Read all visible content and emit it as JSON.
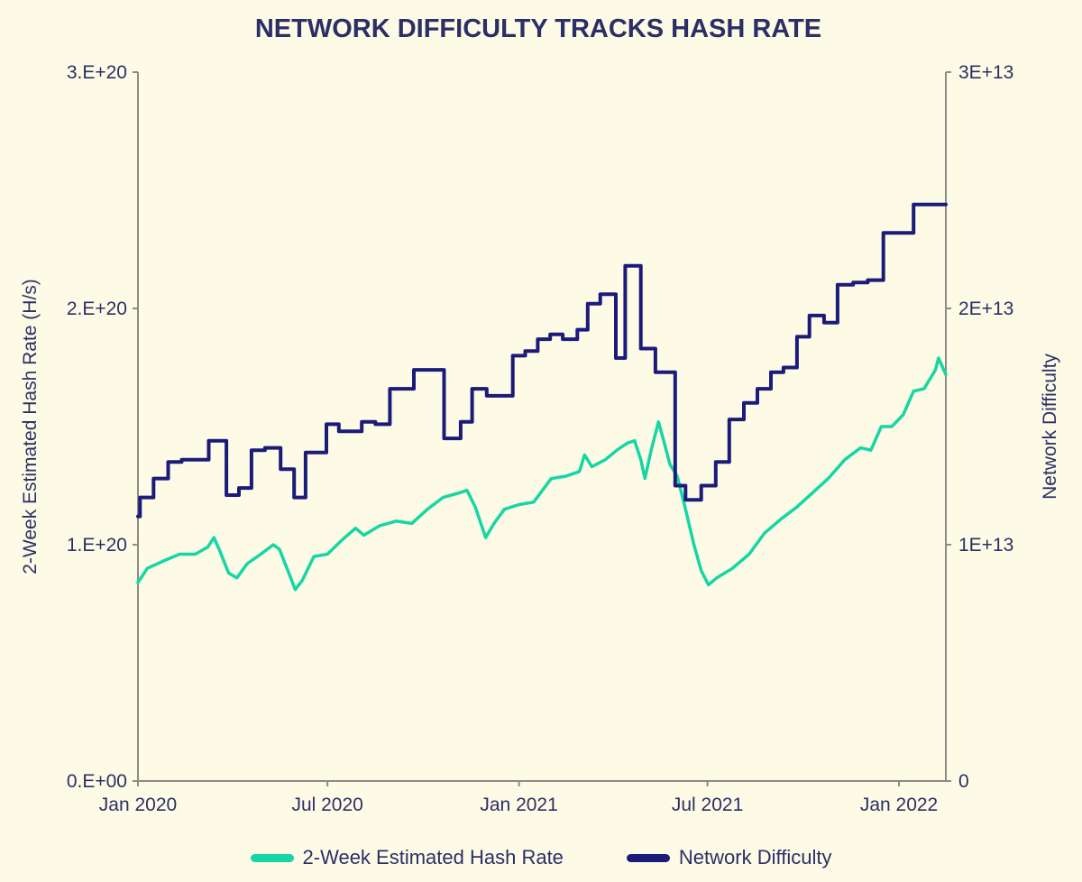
{
  "colors": {
    "background": "#fdfbe6",
    "hash_rate": "#16d6a6",
    "difficulty": "#1b1b7a",
    "axis": "#8b8c84",
    "text": "#2b2f66"
  },
  "chart_data": {
    "type": "line",
    "title": "NETWORK DIFFICULTY TRACKS HASH RATE",
    "x_range": [
      "2020-01-01",
      "2022-02-15"
    ],
    "x_ticks": [
      {
        "date": "2020-01-01",
        "label": "Jan 2020"
      },
      {
        "date": "2020-07-01",
        "label": "Jul 2020"
      },
      {
        "date": "2021-01-01",
        "label": "Jan 2021"
      },
      {
        "date": "2021-07-01",
        "label": "Jul 2021"
      },
      {
        "date": "2022-01-01",
        "label": "Jan 2022"
      }
    ],
    "y_left": {
      "label": "2-Week Estimated Hash Rate (H/s)",
      "range": [
        0,
        3e+20
      ],
      "ticks": [
        {
          "value": 0,
          "label": "0.E+00"
        },
        {
          "value": 1e+20,
          "label": "1.E+20"
        },
        {
          "value": 2e+20,
          "label": "2.E+20"
        },
        {
          "value": 3e+20,
          "label": "3.E+20"
        }
      ]
    },
    "y_right": {
      "label": "Network Difficulty",
      "range": [
        0,
        30000000000000.0
      ],
      "ticks": [
        {
          "value": 0,
          "label": "0"
        },
        {
          "value": 10000000000000.0,
          "label": "1E+13"
        },
        {
          "value": 20000000000000.0,
          "label": "2E+13"
        },
        {
          "value": 30000000000000.0,
          "label": "3E+13"
        }
      ]
    },
    "grid": false,
    "legend_position": "bottom-center",
    "series": [
      {
        "name": "2-Week Estimated Hash Rate",
        "axis": "left",
        "style": "line",
        "points": [
          [
            "2020-01-01",
            8.4e+19
          ],
          [
            "2020-01-10",
            9e+19
          ],
          [
            "2020-01-25",
            9.3e+19
          ],
          [
            "2020-02-10",
            9.6e+19
          ],
          [
            "2020-02-25",
            9.6e+19
          ],
          [
            "2020-03-08",
            9.9e+19
          ],
          [
            "2020-03-14",
            1.03e+20
          ],
          [
            "2020-03-20",
            9.7e+19
          ],
          [
            "2020-03-28",
            8.8e+19
          ],
          [
            "2020-04-05",
            8.6e+19
          ],
          [
            "2020-04-15",
            9.2e+19
          ],
          [
            "2020-04-28",
            9.6e+19
          ],
          [
            "2020-05-10",
            1e+20
          ],
          [
            "2020-05-16",
            9.8e+19
          ],
          [
            "2020-05-24",
            8.9e+19
          ],
          [
            "2020-05-31",
            8.1e+19
          ],
          [
            "2020-06-07",
            8.5e+19
          ],
          [
            "2020-06-18",
            9.5e+19
          ],
          [
            "2020-07-01",
            9.6e+19
          ],
          [
            "2020-07-15",
            1.02e+20
          ],
          [
            "2020-07-28",
            1.07e+20
          ],
          [
            "2020-08-05",
            1.04e+20
          ],
          [
            "2020-08-20",
            1.08e+20
          ],
          [
            "2020-09-05",
            1.1e+20
          ],
          [
            "2020-09-20",
            1.09e+20
          ],
          [
            "2020-10-05",
            1.15e+20
          ],
          [
            "2020-10-20",
            1.2e+20
          ],
          [
            "2020-11-05",
            1.22e+20
          ],
          [
            "2020-11-12",
            1.23e+20
          ],
          [
            "2020-11-20",
            1.16e+20
          ],
          [
            "2020-11-30",
            1.03e+20
          ],
          [
            "2020-12-08",
            1.09e+20
          ],
          [
            "2020-12-18",
            1.15e+20
          ],
          [
            "2021-01-01",
            1.17e+20
          ],
          [
            "2021-01-15",
            1.18e+20
          ],
          [
            "2021-02-01",
            1.28e+20
          ],
          [
            "2021-02-15",
            1.29e+20
          ],
          [
            "2021-02-28",
            1.31e+20
          ],
          [
            "2021-03-05",
            1.38e+20
          ],
          [
            "2021-03-12",
            1.33e+20
          ],
          [
            "2021-03-25",
            1.36e+20
          ],
          [
            "2021-04-05",
            1.4e+20
          ],
          [
            "2021-04-15",
            1.43e+20
          ],
          [
            "2021-04-22",
            1.44e+20
          ],
          [
            "2021-04-28",
            1.36e+20
          ],
          [
            "2021-05-02",
            1.28e+20
          ],
          [
            "2021-05-08",
            1.4e+20
          ],
          [
            "2021-05-15",
            1.52e+20
          ],
          [
            "2021-05-20",
            1.44e+20
          ],
          [
            "2021-05-26",
            1.34e+20
          ],
          [
            "2021-06-02",
            1.29e+20
          ],
          [
            "2021-06-10",
            1.15e+20
          ],
          [
            "2021-06-18",
            1e+20
          ],
          [
            "2021-06-25",
            8.9e+19
          ],
          [
            "2021-07-02",
            8.3e+19
          ],
          [
            "2021-07-10",
            8.6e+19
          ],
          [
            "2021-07-25",
            9e+19
          ],
          [
            "2021-08-10",
            9.6e+19
          ],
          [
            "2021-08-25",
            1.05e+20
          ],
          [
            "2021-09-10",
            1.11e+20
          ],
          [
            "2021-09-25",
            1.16e+20
          ],
          [
            "2021-10-10",
            1.22e+20
          ],
          [
            "2021-10-25",
            1.28e+20
          ],
          [
            "2021-11-10",
            1.36e+20
          ],
          [
            "2021-11-25",
            1.41e+20
          ],
          [
            "2021-12-05",
            1.4e+20
          ],
          [
            "2021-12-15",
            1.5e+20
          ],
          [
            "2021-12-25",
            1.5e+20
          ],
          [
            "2022-01-05",
            1.55e+20
          ],
          [
            "2022-01-15",
            1.65e+20
          ],
          [
            "2022-01-25",
            1.66e+20
          ],
          [
            "2022-02-05",
            1.74e+20
          ],
          [
            "2022-02-08",
            1.79e+20
          ],
          [
            "2022-02-15",
            1.72e+20
          ]
        ]
      },
      {
        "name": "Network Difficulty",
        "axis": "right",
        "style": "step",
        "points": [
          [
            "2020-01-01",
            11200000000000.0
          ],
          [
            "2020-01-03",
            12000000000000.0
          ],
          [
            "2020-01-16",
            12800000000000.0
          ],
          [
            "2020-01-30",
            13500000000000.0
          ],
          [
            "2020-02-12",
            13600000000000.0
          ],
          [
            "2020-03-09",
            14400000000000.0
          ],
          [
            "2020-03-26",
            12100000000000.0
          ],
          [
            "2020-04-07",
            12400000000000.0
          ],
          [
            "2020-04-19",
            14000000000000.0
          ],
          [
            "2020-05-02",
            14100000000000.0
          ],
          [
            "2020-05-17",
            13200000000000.0
          ],
          [
            "2020-05-30",
            12000000000000.0
          ],
          [
            "2020-06-10",
            13900000000000.0
          ],
          [
            "2020-06-30",
            15100000000000.0
          ],
          [
            "2020-07-12",
            14800000000000.0
          ],
          [
            "2020-08-03",
            15200000000000.0
          ],
          [
            "2020-08-16",
            15100000000000.0
          ],
          [
            "2020-08-30",
            16600000000000.0
          ],
          [
            "2020-09-22",
            17400000000000.0
          ],
          [
            "2020-10-21",
            14500000000000.0
          ],
          [
            "2020-11-06",
            15200000000000.0
          ],
          [
            "2020-11-17",
            16600000000000.0
          ],
          [
            "2020-12-01",
            16300000000000.0
          ],
          [
            "2020-12-26",
            18000000000000.0
          ],
          [
            "2021-01-07",
            18200000000000.0
          ],
          [
            "2021-01-19",
            18700000000000.0
          ],
          [
            "2021-01-31",
            18900000000000.0
          ],
          [
            "2021-02-12",
            18700000000000.0
          ],
          [
            "2021-02-26",
            19100000000000.0
          ],
          [
            "2021-03-08",
            20200000000000.0
          ],
          [
            "2021-03-20",
            20600000000000.0
          ],
          [
            "2021-04-04",
            17900000000000.0
          ],
          [
            "2021-04-13",
            21800000000000.0
          ],
          [
            "2021-04-28",
            18300000000000.0
          ],
          [
            "2021-05-12",
            17300000000000.0
          ],
          [
            "2021-05-31",
            12500000000000.0
          ],
          [
            "2021-06-10",
            11900000000000.0
          ],
          [
            "2021-06-25",
            12500000000000.0
          ],
          [
            "2021-07-09",
            13500000000000.0
          ],
          [
            "2021-07-22",
            15300000000000.0
          ],
          [
            "2021-08-05",
            16000000000000.0
          ],
          [
            "2021-08-18",
            16600000000000.0
          ],
          [
            "2021-08-31",
            17300000000000.0
          ],
          [
            "2021-09-12",
            17500000000000.0
          ],
          [
            "2021-09-25",
            18800000000000.0
          ],
          [
            "2021-10-07",
            19700000000000.0
          ],
          [
            "2021-10-21",
            19400000000000.0
          ],
          [
            "2021-11-03",
            21000000000000.0
          ],
          [
            "2021-11-18",
            21100000000000.0
          ],
          [
            "2021-12-02",
            21200000000000.0
          ],
          [
            "2021-12-17",
            23200000000000.0
          ],
          [
            "2022-01-15",
            24400000000000.0
          ],
          [
            "2022-02-15",
            24400000000000.0
          ]
        ]
      }
    ]
  }
}
